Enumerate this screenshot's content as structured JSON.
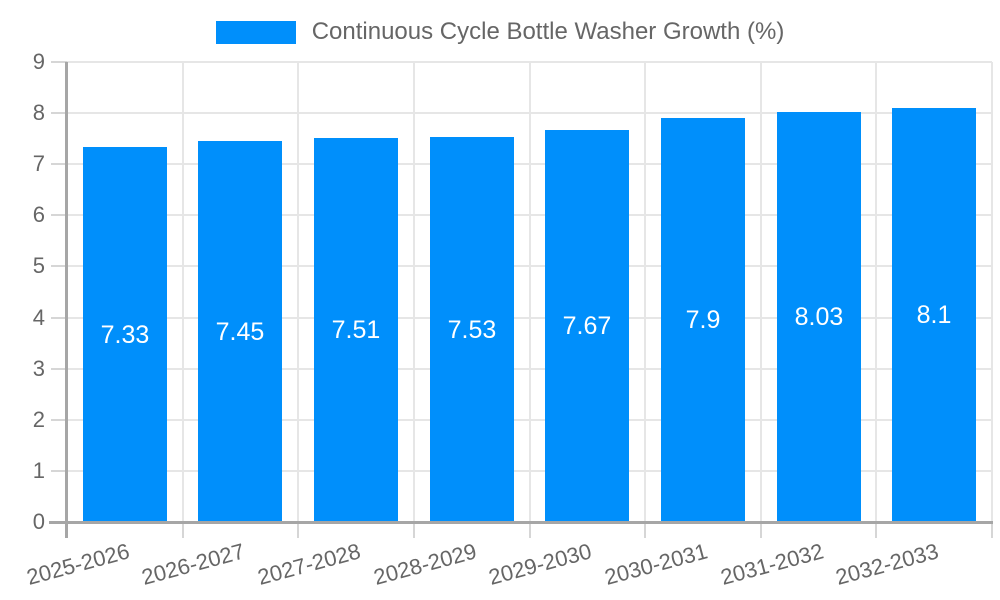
{
  "legend": {
    "label": "Continuous Cycle Bottle Washer Growth (%)"
  },
  "chart_data": {
    "type": "bar",
    "title": "",
    "xlabel": "",
    "ylabel": "",
    "categories": [
      "2025-2026",
      "2026-2027",
      "2027-2028",
      "2028-2029",
      "2029-2030",
      "2030-2031",
      "2031-2032",
      "2032-2033"
    ],
    "series": [
      {
        "name": "Continuous Cycle Bottle Washer Growth (%)",
        "values": [
          7.33,
          7.45,
          7.51,
          7.53,
          7.67,
          7.9,
          8.03,
          8.1
        ]
      }
    ],
    "value_labels": [
      "7.33",
      "7.45",
      "7.51",
      "7.53",
      "7.67",
      "7.9",
      "8.03",
      "8.1"
    ],
    "ylim": [
      0,
      9
    ],
    "y_ticks": [
      0,
      1,
      2,
      3,
      4,
      5,
      6,
      7,
      8,
      9
    ],
    "grid": {
      "horizontal": true,
      "vertical": true
    },
    "legend_position": "top",
    "x_label_rotation_deg": -15,
    "colors": {
      "bar": "#008FFB",
      "grid": "#e6e6e6",
      "tick": "#d6d6d6",
      "axis": "#a6a6a6",
      "text": "#666666",
      "value_label": "#ffffff",
      "background": "#ffffff"
    }
  }
}
